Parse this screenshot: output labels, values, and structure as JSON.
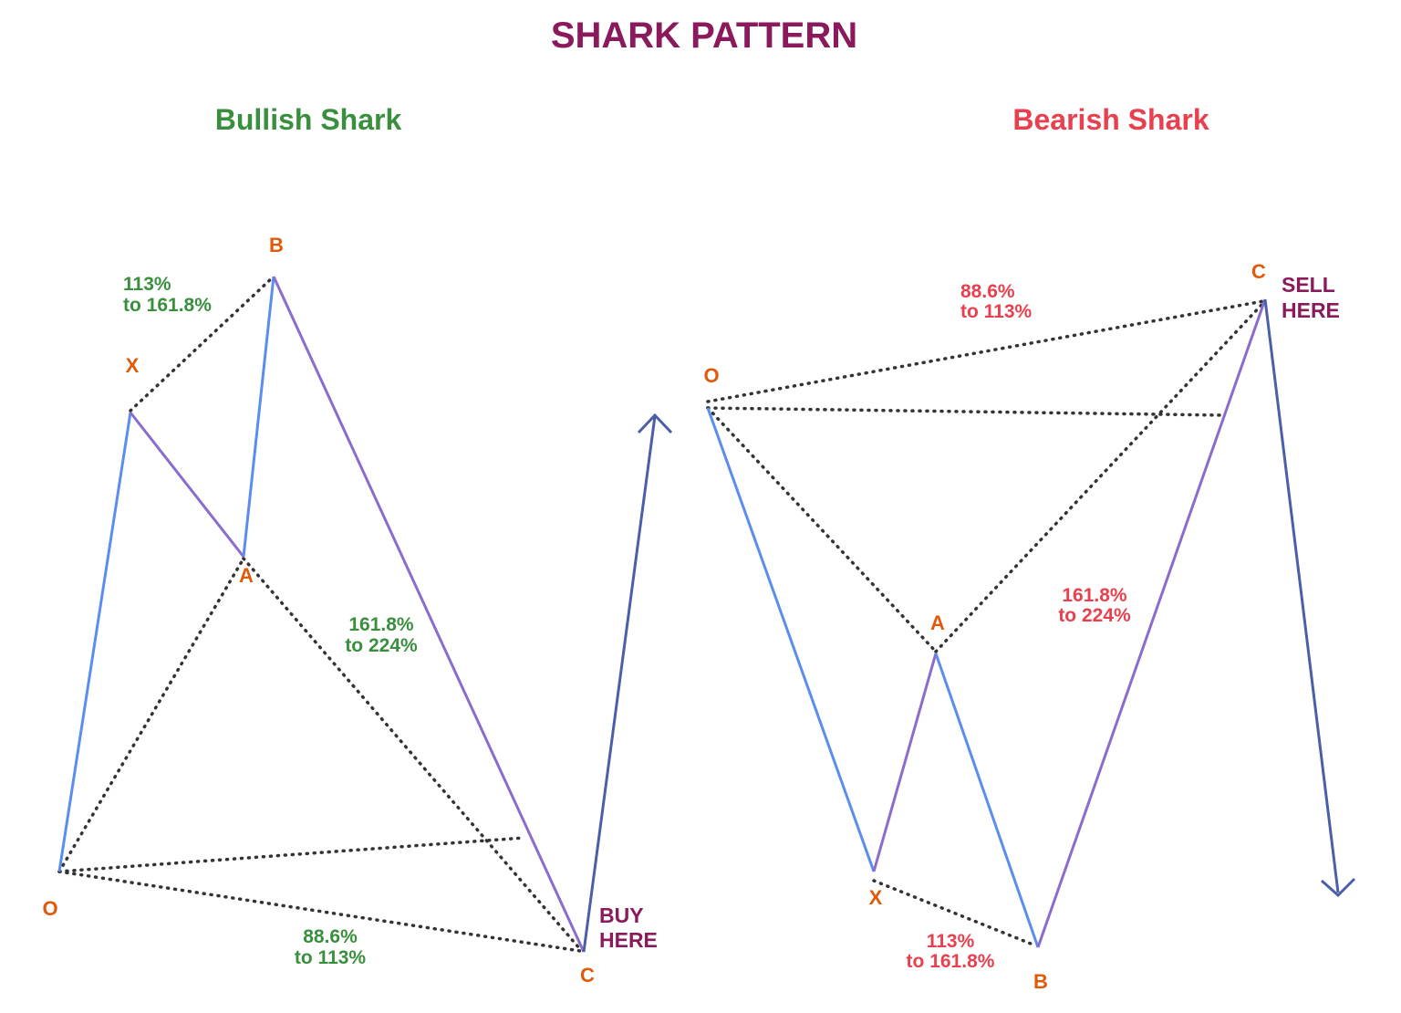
{
  "title": "SHARK PATTERN",
  "panels": [
    {
      "title": "Bullish Shark",
      "points": [
        "O",
        "X",
        "A",
        "B",
        "C"
      ],
      "ratios": [
        [
          "113%",
          "to 161.8%"
        ],
        [
          "161.8%",
          "to 224%"
        ],
        [
          "88.6%",
          "to 113%"
        ]
      ],
      "action": [
        "BUY",
        "HERE"
      ]
    },
    {
      "title": "Bearish Shark",
      "points": [
        "O",
        "X",
        "A",
        "B",
        "C"
      ],
      "ratios": [
        [
          "113%",
          "to 161.8%"
        ],
        [
          "161.8%",
          "to 224%"
        ],
        [
          "88.6%",
          "to 113%"
        ]
      ],
      "action": [
        "SELL",
        "HERE"
      ]
    }
  ]
}
